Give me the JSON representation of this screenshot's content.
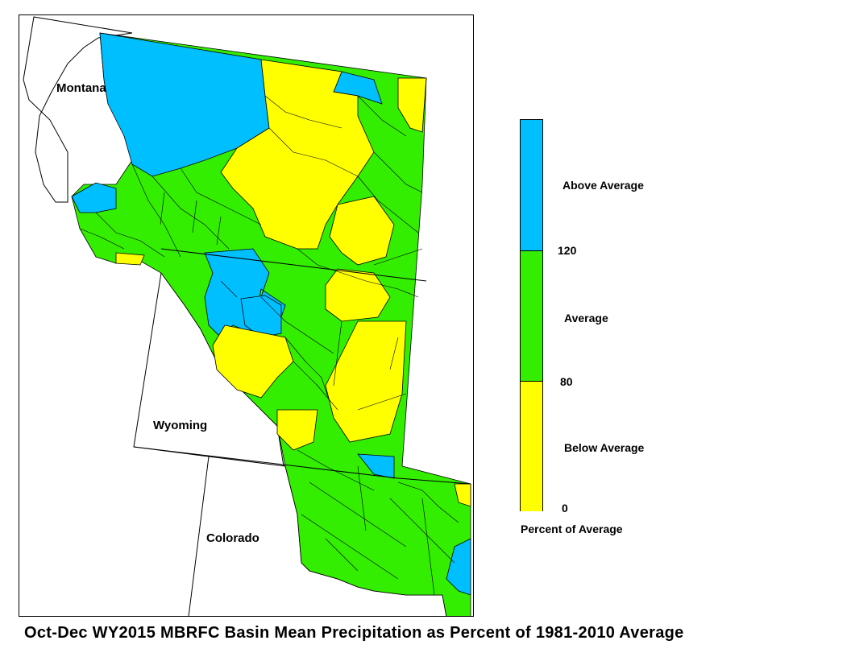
{
  "map": {
    "states": [
      {
        "id": "montana",
        "label": "Montana"
      },
      {
        "id": "wyoming",
        "label": "Wyoming"
      },
      {
        "id": "colorado",
        "label": "Colorado"
      }
    ]
  },
  "legend": {
    "title": "Percent of Average",
    "categories": [
      {
        "label": "Above Average",
        "color": "#00BFFF",
        "min": 120
      },
      {
        "label": "Average",
        "color": "#33EE00",
        "min": 80,
        "max": 120
      },
      {
        "label": "Below Average",
        "color": "#FFFF00",
        "min": 0,
        "max": 80
      }
    ],
    "ticks": [
      "120",
      "80",
      "0"
    ]
  },
  "caption": "Oct-Dec WY2015 MBRFC Basin Mean Precipitation as Percent of 1981-2010 Average"
}
